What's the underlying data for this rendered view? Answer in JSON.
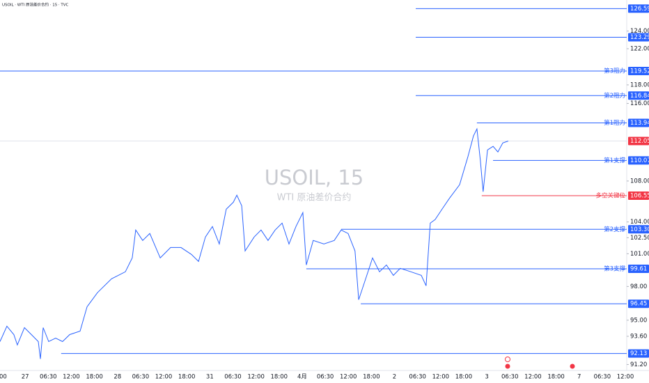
{
  "chart_data": {
    "type": "line",
    "header": "USOIL · WTI 原油差价合约 · 15 · TVC",
    "title": "USOIL, 15",
    "subtitle": "WTI 原油差价合约",
    "log_scale": true,
    "color": "#2962ff",
    "xlim": [
      -0.09,
      27.06
    ],
    "ylim": [
      90.7,
      127.6
    ],
    "categories": [
      ":00",
      "27",
      "06:30",
      "12:00",
      "18:00",
      "28",
      "06:30",
      "12:00",
      "18:00",
      "31",
      "06:30",
      "12:00",
      "18:00",
      "4月",
      "06:30",
      "12:00",
      "18:00",
      "2",
      "06:30",
      "12:00",
      "18:00",
      "3",
      "06:30",
      "12:00",
      "18:00",
      "7",
      "06:30",
      "12:00"
    ],
    "yticks": [
      {
        "value": 124,
        "label": "124.00"
      },
      {
        "value": 122,
        "label": "122.00"
      },
      {
        "value": 118,
        "label": "118.00"
      },
      {
        "value": 116,
        "label": "116.00"
      },
      {
        "value": 108,
        "label": "108.00"
      },
      {
        "value": 104,
        "label": "104.00"
      },
      {
        "value": 102.5,
        "label": "102.50"
      },
      {
        "value": 101,
        "label": "101.00"
      },
      {
        "value": 98,
        "label": "98.00"
      },
      {
        "value": 95,
        "label": "95.00"
      },
      {
        "value": 93.6,
        "label": "93.60"
      },
      {
        "value": 91.2,
        "label": "91.20"
      }
    ],
    "series": [
      {
        "x": [
          -0.09,
          0.21,
          0.51,
          0.66,
          0.97,
          1.27,
          1.57,
          1.66,
          1.78,
          2.02,
          2.32,
          2.62,
          2.93,
          3.38,
          3.68,
          4.13,
          4.74,
          5.34,
          5.64,
          5.79,
          6.09,
          6.4,
          6.85,
          7.3,
          7.75,
          8.2,
          8.51,
          8.81,
          9.11,
          9.41,
          9.71,
          10.02,
          10.17,
          10.38,
          10.53,
          10.92,
          11.22,
          11.52,
          11.83,
          12.13,
          12.43,
          12.73,
          13.03,
          13.18,
          13.48,
          13.94,
          14.39,
          14.69,
          14.99,
          15.29,
          15.45,
          15.75,
          16.05,
          16.35,
          16.65,
          16.95,
          17.25,
          17.71,
          18.16,
          18.37,
          18.55,
          18.76,
          19.06,
          19.37,
          19.82,
          20.18,
          20.42,
          20.57,
          20.72,
          20.84,
          21.03,
          21.27,
          21.48,
          21.69,
          21.93
        ],
        "values": [
          93.15,
          94.48,
          93.75,
          92.86,
          94.35,
          93.75,
          93.15,
          91.67,
          94.35,
          93.15,
          93.44,
          93.15,
          93.75,
          94.05,
          96.18,
          97.44,
          98.69,
          99.33,
          100.61,
          103.23,
          102.24,
          102.9,
          100.61,
          101.58,
          101.58,
          100.94,
          100.29,
          102.57,
          103.56,
          101.91,
          105.23,
          105.91,
          106.6,
          105.57,
          101.26,
          102.57,
          103.23,
          102.24,
          103.23,
          103.89,
          101.91,
          103.56,
          104.9,
          99.96,
          102.24,
          101.91,
          102.24,
          103.23,
          102.9,
          101.26,
          96.81,
          98.69,
          100.61,
          99.33,
          99.96,
          99.01,
          99.65,
          99.33,
          99.01,
          98.06,
          103.89,
          104.23,
          105.23,
          106.26,
          107.63,
          110.43,
          112.58,
          113.31,
          110.08,
          106.94,
          111.14,
          111.5,
          110.93,
          111.85,
          112.05
        ]
      }
    ],
    "current_price": 112.05,
    "current_color": "#f23645",
    "levels": [
      {
        "value": 126.59,
        "label": "126.59",
        "start": 17.92,
        "color": "#2962ff"
      },
      {
        "value": 123.29,
        "label": "123.29",
        "start": 17.92,
        "color": "#2962ff"
      },
      {
        "name": "第3阻力",
        "value": 119.52,
        "label": "119.52",
        "start": -0.09,
        "color": "#2962ff"
      },
      {
        "name": "第2阻力",
        "value": 116.84,
        "label": "116.84",
        "start": 17.92,
        "color": "#2962ff"
      },
      {
        "name": "第1阻力",
        "value": 113.94,
        "label": "113.94",
        "start": 20.57,
        "color": "#2962ff"
      },
      {
        "name": "第1支撑",
        "value": 110.07,
        "label": "110.07",
        "start": 21.27,
        "color": "#2962ff"
      },
      {
        "name": "多空关键位",
        "value": 106.55,
        "label": "106.55",
        "start": 20.78,
        "color": "#f23645"
      },
      {
        "name": "第2支撑",
        "value": 103.3,
        "label": "103.30",
        "start": 14.69,
        "color": "#2962ff"
      },
      {
        "name": "第3支撑",
        "value": 99.61,
        "label": "99.61",
        "start": 13.18,
        "color": "#2962ff"
      },
      {
        "value": 96.45,
        "label": "96.45",
        "start": 15.54,
        "color": "#2962ff"
      },
      {
        "value": 92.13,
        "label": "92.13",
        "start": 2.56,
        "color": "#2962ff"
      }
    ]
  }
}
